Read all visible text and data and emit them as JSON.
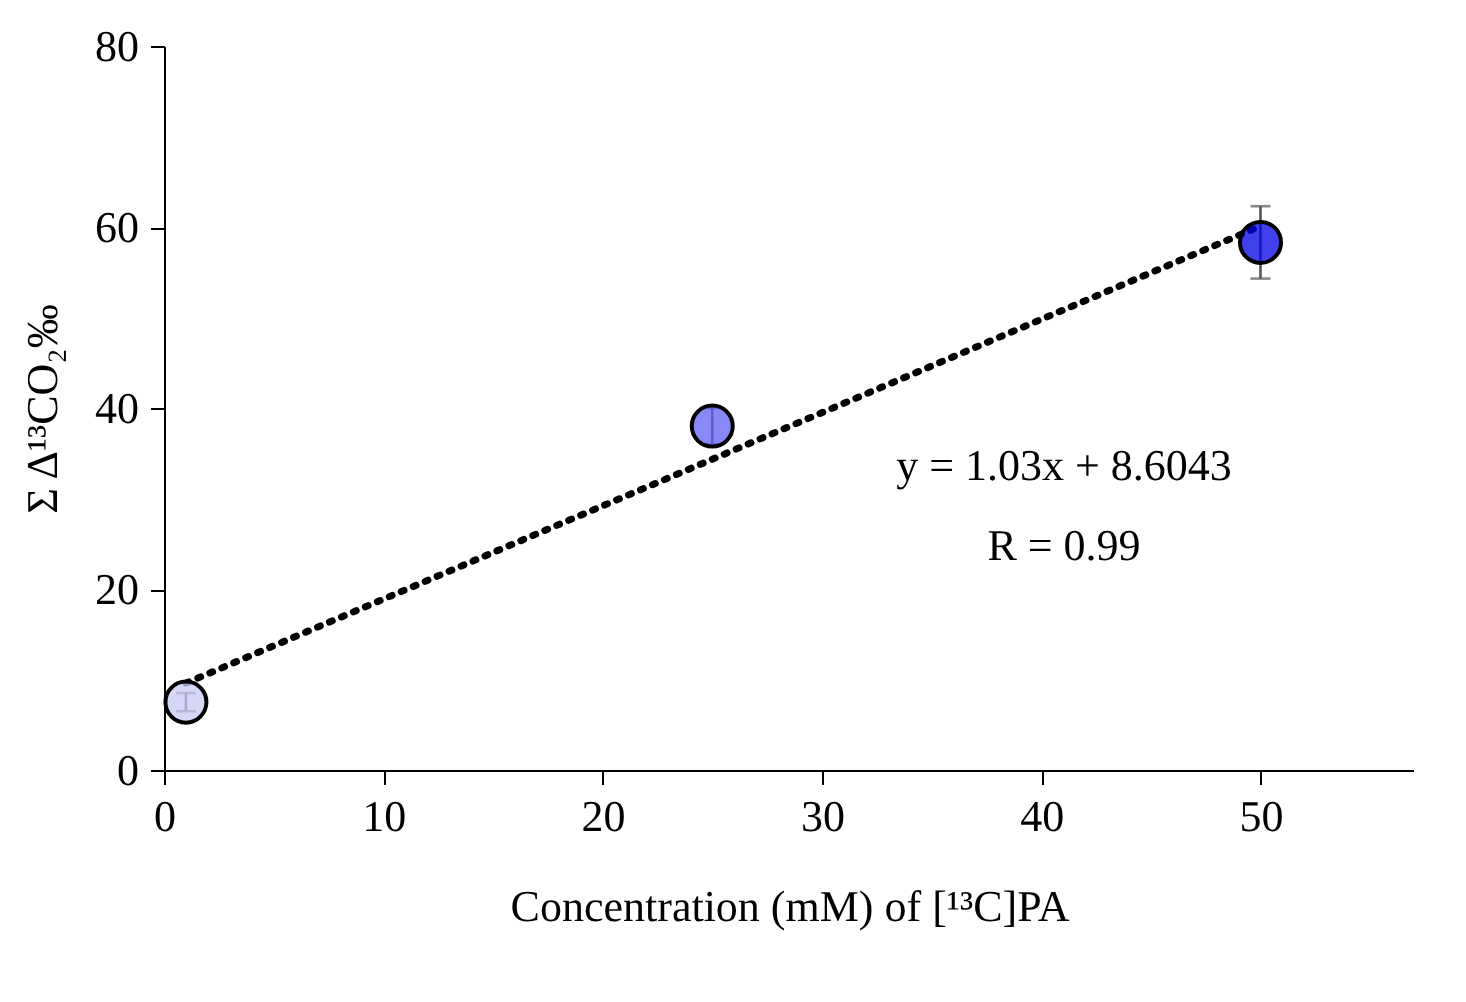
{
  "chart_data": {
    "type": "scatter",
    "xlabel": "Concentration (mM) of [¹³C]PA",
    "ylabel": "Σ Δ¹³CO₂‰",
    "xlim": [
      0,
      57
    ],
    "xticks": [
      0,
      10,
      20,
      30,
      40,
      50
    ],
    "ylim": [
      0,
      80
    ],
    "yticks": [
      0,
      20,
      40,
      60,
      80
    ],
    "x": [
      1,
      25,
      50
    ],
    "marker": "circle",
    "series": [
      {
        "colors": [
          "#c8c8f4",
          "#6060f4",
          "#0000e6"
        ],
        "values": [
          7.5,
          38,
          58.3
        ],
        "errors": [
          1,
          2,
          4
        ]
      },
      {
        "type": "line",
        "marker": "none",
        "color": "#000000",
        "line_style": "dotted",
        "x": [
          1,
          50
        ],
        "values": [
          9.6,
          60.1
        ]
      }
    ],
    "annotations": [
      "y = 1.03x + 8.6043",
      "R = 0.99"
    ]
  }
}
